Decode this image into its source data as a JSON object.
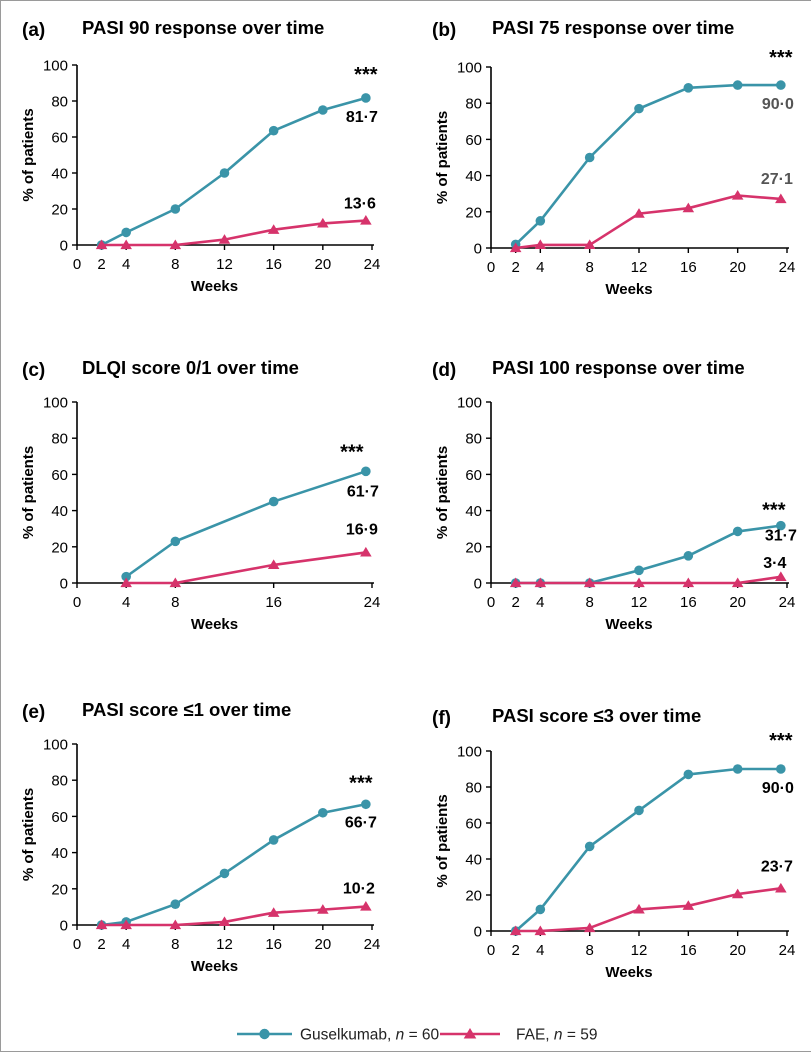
{
  "colors": {
    "guselkumab": "#3a94a8",
    "fae": "#d6336b",
    "axis": "#000000",
    "muted": "#555555"
  },
  "legend": {
    "items": [
      {
        "name_prefix": "Guselkumab, ",
        "n_letter": "n",
        "n_suffix": " = 60",
        "marker": "circle"
      },
      {
        "name_prefix": "FAE, ",
        "n_letter": "n",
        "n_suffix": " = 59",
        "marker": "triangle"
      }
    ]
  },
  "chart_data": [
    {
      "panel": "(a)",
      "title": "PASI 90 response over time",
      "type": "line",
      "xlabel": "Weeks",
      "ylabel": "% of patients",
      "xticks": [
        "0",
        "2",
        "4",
        "8",
        "12",
        "16",
        "20",
        "24"
      ],
      "yticks": [
        "0",
        "20",
        "40",
        "60",
        "80",
        "100"
      ],
      "xlim": [
        0,
        24
      ],
      "ylim": [
        0,
        100
      ],
      "significance": "***",
      "series": [
        {
          "marker": "circle",
          "x": [
            2,
            4,
            8,
            12,
            16,
            20,
            23.5
          ],
          "y": [
            0,
            7,
            20,
            40,
            63.5,
            75,
            81.7
          ],
          "end_label": "81·7"
        },
        {
          "marker": "triangle",
          "x": [
            2,
            4,
            8,
            12,
            16,
            20,
            23.5
          ],
          "y": [
            0,
            0,
            0,
            3,
            8.5,
            12,
            13.6
          ],
          "end_label": "13·6"
        }
      ]
    },
    {
      "panel": "(b)",
      "title": "PASI 75 response over time",
      "type": "line",
      "xlabel": "Weeks",
      "ylabel": "% of patients",
      "xticks": [
        "0",
        "2",
        "4",
        "8",
        "12",
        "16",
        "20",
        "24"
      ],
      "yticks": [
        "0",
        "20",
        "40",
        "60",
        "80",
        "100"
      ],
      "xlim": [
        0,
        24
      ],
      "ylim": [
        0,
        100
      ],
      "significance": "***",
      "series": [
        {
          "marker": "circle",
          "x": [
            2,
            4,
            8,
            12,
            16,
            20,
            23.5
          ],
          "y": [
            2,
            15,
            50,
            77,
            88.5,
            90,
            90
          ],
          "end_label": "90·0"
        },
        {
          "marker": "triangle",
          "x": [
            2,
            4,
            8,
            12,
            16,
            20,
            23.5
          ],
          "y": [
            0,
            1.7,
            1.7,
            19,
            22,
            29,
            27.1
          ],
          "end_label": "27·1"
        }
      ]
    },
    {
      "panel": "(c)",
      "title": "DLQI score 0/1 over time",
      "type": "line",
      "xlabel": "Weeks",
      "ylabel": "% of patients",
      "xticks": [
        "0",
        "4",
        "8",
        "16",
        "24"
      ],
      "yticks": [
        "0",
        "20",
        "40",
        "60",
        "80",
        "100"
      ],
      "xlim": [
        0,
        24
      ],
      "ylim": [
        0,
        100
      ],
      "significance": "***",
      "series": [
        {
          "marker": "circle",
          "x": [
            4,
            8,
            16,
            23.5
          ],
          "y": [
            3.5,
            23,
            45,
            61.7
          ],
          "end_label": "61·7"
        },
        {
          "marker": "triangle",
          "x": [
            4,
            8,
            16,
            23.5
          ],
          "y": [
            0,
            0,
            10,
            16.9
          ],
          "end_label": "16·9"
        }
      ]
    },
    {
      "panel": "(d)",
      "title": "PASI 100 response over time",
      "type": "line",
      "xlabel": "Weeks",
      "ylabel": "% of patients",
      "xticks": [
        "0",
        "2",
        "4",
        "8",
        "12",
        "16",
        "20",
        "24"
      ],
      "yticks": [
        "0",
        "20",
        "40",
        "60",
        "80",
        "100"
      ],
      "xlim": [
        0,
        24
      ],
      "ylim": [
        0,
        100
      ],
      "significance": "***",
      "series": [
        {
          "marker": "circle",
          "x": [
            2,
            4,
            8,
            12,
            16,
            20,
            23.5
          ],
          "y": [
            0,
            0,
            0,
            7,
            15,
            28.5,
            31.7
          ],
          "end_label": "31·7"
        },
        {
          "marker": "triangle",
          "x": [
            2,
            4,
            8,
            12,
            16,
            20,
            23.5
          ],
          "y": [
            0,
            0,
            0,
            0,
            0,
            0,
            3.4
          ],
          "end_label": "3·4"
        }
      ]
    },
    {
      "panel": "(e)",
      "title": "PASI score ≤1 over time",
      "type": "line",
      "xlabel": "Weeks",
      "ylabel": "% of patients",
      "xticks": [
        "0",
        "2",
        "4",
        "8",
        "12",
        "16",
        "20",
        "24"
      ],
      "yticks": [
        "0",
        "20",
        "40",
        "60",
        "80",
        "100"
      ],
      "xlim": [
        0,
        24
      ],
      "ylim": [
        0,
        100
      ],
      "significance": "***",
      "series": [
        {
          "marker": "circle",
          "x": [
            2,
            4,
            8,
            12,
            16,
            20,
            23.5
          ],
          "y": [
            0,
            1.7,
            11.5,
            28.5,
            47,
            62,
            66.7
          ],
          "end_label": "66·7"
        },
        {
          "marker": "triangle",
          "x": [
            2,
            4,
            8,
            12,
            16,
            20,
            23.5
          ],
          "y": [
            0,
            0,
            0,
            1.7,
            6.8,
            8.5,
            10.2
          ],
          "end_label": "10·2"
        }
      ]
    },
    {
      "panel": "(f)",
      "title": "PASI score ≤3 over time",
      "type": "line",
      "xlabel": "Weeks",
      "ylabel": "% of patients",
      "xticks": [
        "0",
        "2",
        "4",
        "8",
        "12",
        "16",
        "20",
        "24"
      ],
      "yticks": [
        "0",
        "20",
        "40",
        "60",
        "80",
        "100"
      ],
      "xlim": [
        0,
        24
      ],
      "ylim": [
        0,
        100
      ],
      "significance": "***",
      "series": [
        {
          "marker": "circle",
          "x": [
            2,
            4,
            8,
            12,
            16,
            20,
            23.5
          ],
          "y": [
            0,
            12,
            47,
            67,
            87,
            90,
            90
          ],
          "end_label": "90·0"
        },
        {
          "marker": "triangle",
          "x": [
            2,
            4,
            8,
            12,
            16,
            20,
            23.5
          ],
          "y": [
            0,
            0,
            1.7,
            12,
            14,
            20.5,
            23.7
          ],
          "end_label": "23·7"
        }
      ]
    }
  ]
}
